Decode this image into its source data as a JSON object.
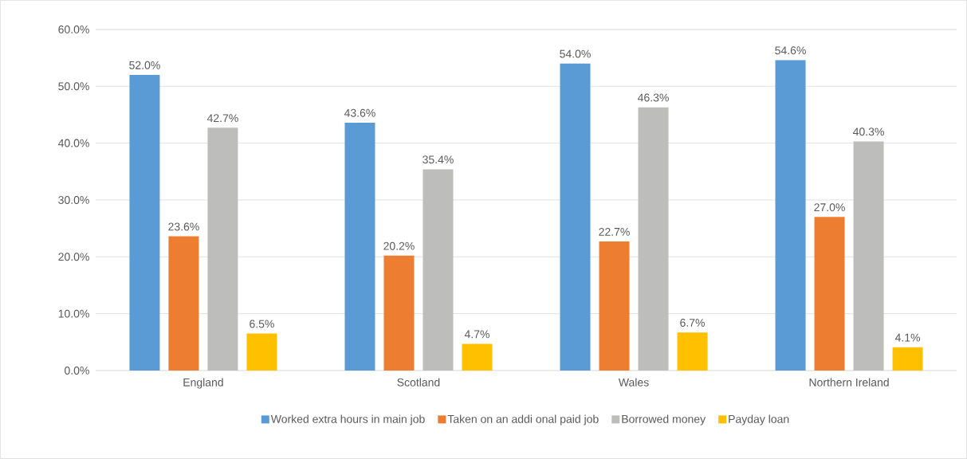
{
  "chart_data": {
    "type": "bar",
    "categories": [
      "England",
      "Scotland",
      "Wales",
      "Northern Ireland"
    ],
    "series": [
      {
        "name": "Worked extra hours in  main job",
        "color": "#5b9bd5",
        "values": [
          52.0,
          43.6,
          54.0,
          54.6
        ],
        "value_labels": [
          "52.0%",
          "43.6%",
          "54.0%",
          "54.6%"
        ]
      },
      {
        "name": "Taken on an addi  onal paid job",
        "color": "#ed7d31",
        "values": [
          23.6,
          20.2,
          22.7,
          27.0
        ],
        "value_labels": [
          "23.6%",
          "20.2%",
          "22.7%",
          "27.0%"
        ]
      },
      {
        "name": "Borrowed money",
        "color": "#bdbdbb",
        "values": [
          42.7,
          35.4,
          46.3,
          40.3
        ],
        "value_labels": [
          "42.7%",
          "35.4%",
          "46.3%",
          "40.3%"
        ]
      },
      {
        "name": "Payday loan",
        "color": "#ffc000",
        "values": [
          6.5,
          4.7,
          6.7,
          4.1
        ],
        "value_labels": [
          "6.5%",
          "4.7%",
          "6.7%",
          "4.1%"
        ]
      }
    ],
    "ylim": [
      0,
      60
    ],
    "yticks": [
      {
        "value": 0,
        "label": "0.0%"
      },
      {
        "value": 10,
        "label": "10.0%"
      },
      {
        "value": 20,
        "label": "20.0%"
      },
      {
        "value": 30,
        "label": "30.0%"
      },
      {
        "value": 40,
        "label": "40.0%"
      },
      {
        "value": 50,
        "label": "50.0%"
      },
      {
        "value": 60,
        "label": "60.0%"
      }
    ],
    "grid": "y",
    "legend": "bottom"
  }
}
